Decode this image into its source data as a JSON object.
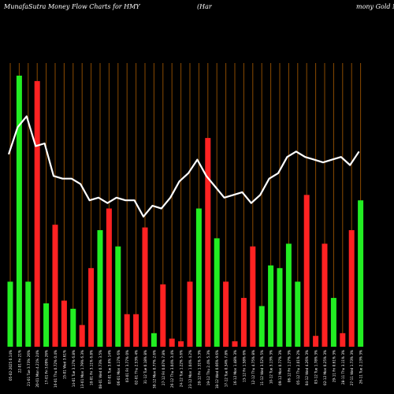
{
  "header": {
    "left": "MunafaSutra  Money Flow  Charts for HMY",
    "mid": "(Har",
    "right": "mony Gold Min"
  },
  "chart_data": {
    "type": "bar",
    "ylim": [
      0,
      100
    ],
    "grid": "vertical lines, orange",
    "colors": {
      "up": "#22ee22",
      "down": "#ff2222",
      "line": "#ffffff",
      "grid": "#8a4a00"
    },
    "bars": [
      {
        "label": "05-02-2025 0.14%",
        "value": 24,
        "color": "green"
      },
      {
        "label": "22-01 Fri 21%",
        "value": 100,
        "color": "green"
      },
      {
        "label": "21-01 Tue 3.73% 26%",
        "value": 24,
        "color": "green"
      },
      {
        "label": "20-01 Mon 4.21% 24%",
        "value": 98,
        "color": "red"
      },
      {
        "label": "17-01 Fri 3.09% 26%",
        "value": 16,
        "color": "green"
      },
      {
        "label": "16-01 Thu 0.72% 0.4%",
        "value": 45,
        "color": "red"
      },
      {
        "label": "15-01 Wed 3.61%",
        "value": 17,
        "color": "red"
      },
      {
        "label": "14-01 Tue 3.17% 6.8%",
        "value": 14,
        "color": "green"
      },
      {
        "label": "13-01 Mon 1.79% 6.3%",
        "value": 8,
        "color": "red"
      },
      {
        "label": "10-01 Fri 3.11% 6.8%",
        "value": 29,
        "color": "red"
      },
      {
        "label": "08-01 Wed 0.73% 3.5%",
        "value": 43,
        "color": "green"
      },
      {
        "label": "07-01 Tue 3.6% 14%",
        "value": 51,
        "color": "red"
      },
      {
        "label": "06-01 Mon 4.17% 6%",
        "value": 37,
        "color": "green"
      },
      {
        "label": "03-01 Fri 3.77% 0%",
        "value": 12,
        "color": "red"
      },
      {
        "label": "02-01 Thu 2.53% 4%",
        "value": 12,
        "color": "red"
      },
      {
        "label": "31-12 Tue 0.18% 8%",
        "value": 44,
        "color": "red"
      },
      {
        "label": "30-12 Mon 0.77% 2.6%",
        "value": 5,
        "color": "green"
      },
      {
        "label": "27-12 Fri 0.07% 7.8%",
        "value": 23,
        "color": "red"
      },
      {
        "label": "26-12 Thu 3.04% 3.4%",
        "value": 3,
        "color": "red"
      },
      {
        "label": "24-12 Tue 1.22% 5.6%",
        "value": 2,
        "color": "red"
      },
      {
        "label": "23-12 Mon 1.04% 4.2%",
        "value": 24,
        "color": "red"
      },
      {
        "label": "20-12 Fri 1.31% 5.3%",
        "value": 51,
        "color": "green"
      },
      {
        "label": "19-12 Thu 2.4% 5.3%",
        "value": 77,
        "color": "red"
      },
      {
        "label": "18-12 Wed 0.66% 9.6%",
        "value": 40,
        "color": "green"
      },
      {
        "label": "17-12 Tue 0.34% 7.8%",
        "value": 24,
        "color": "red"
      },
      {
        "label": "16-12 Mon 1.48% 3%",
        "value": 2,
        "color": "red"
      },
      {
        "label": "13-12 Fri 1.58% 6%",
        "value": 18,
        "color": "red"
      },
      {
        "label": "12-12 Thu 4.75% 8%",
        "value": 37,
        "color": "red"
      },
      {
        "label": "11-12 Wed 3.52% 5%",
        "value": 15,
        "color": "green"
      },
      {
        "label": "10-12 Tue 3.13% 3%",
        "value": 30,
        "color": "green"
      },
      {
        "label": "09-12 Mon 0.77% 3%",
        "value": 29,
        "color": "green"
      },
      {
        "label": "06-12 Fri 1.27% 3%",
        "value": 38,
        "color": "green"
      },
      {
        "label": "05-12 Thu 2.01% 2%",
        "value": 24,
        "color": "green"
      },
      {
        "label": "04-12 Wed 4.26% 3%",
        "value": 56,
        "color": "red"
      },
      {
        "label": "03-12 Tue 1.78% 3%",
        "value": 4,
        "color": "red"
      },
      {
        "label": "02-12 Mon 0.25% 3%",
        "value": 38,
        "color": "red"
      },
      {
        "label": "29-11 Fri 0.61% 3%",
        "value": 18,
        "color": "green"
      },
      {
        "label": "28-11 Thu 3.11% 3%",
        "value": 5,
        "color": "red"
      },
      {
        "label": "27-11 Wed 1.73% 3%",
        "value": 43,
        "color": "red"
      },
      {
        "label": "26-11 Tue 2.13% 3%",
        "value": 54,
        "color": "green"
      }
    ],
    "line": [
      71,
      81,
      85,
      74,
      75,
      63,
      62,
      62,
      60,
      54,
      55,
      53,
      55,
      54,
      54,
      48,
      52,
      51,
      55,
      61,
      64,
      69,
      63,
      59,
      55,
      56,
      57,
      53,
      56,
      62,
      64,
      70,
      72,
      70,
      69,
      68,
      69,
      70,
      67,
      72
    ]
  }
}
